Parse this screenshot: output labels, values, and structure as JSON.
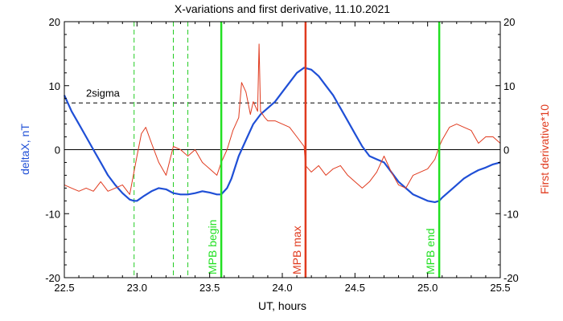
{
  "chart_data": {
    "type": "line",
    "title": "X-variations and first derivative, 11.10.2021",
    "xlabel": "UT, hours",
    "ylabel": "deltaX, nT",
    "ylabel_right": "First derivative*10",
    "xlim": [
      22.5,
      25.5
    ],
    "ylim": [
      -20,
      20
    ],
    "ylim_right": [
      -20,
      20
    ],
    "x_ticks": [
      "22.5",
      "23.0",
      "23.5",
      "24.0",
      "24.5",
      "25.0",
      "25.5"
    ],
    "x_tick_values": [
      22.5,
      23.0,
      23.5,
      24.0,
      24.5,
      25.0,
      25.5
    ],
    "y_ticks_left": [
      "20",
      "10",
      "0",
      "-10",
      "-20"
    ],
    "y_ticks_right": [
      "20",
      "10",
      "0",
      "-10",
      "-20"
    ],
    "y_tick_values": [
      20,
      10,
      0,
      -10,
      -20
    ],
    "zero_line": 0,
    "threshold": {
      "label": "2sigma",
      "value": 7.3
    },
    "colors": {
      "deltaX": "#1f4fd6",
      "derivative": "#e03a1e",
      "mpb_edge": "#22e022",
      "mpb_max": "#e03a1e",
      "dashed": "#22cc22"
    },
    "dashed_vlines": [
      22.98,
      23.25,
      23.35
    ],
    "vlines": [
      {
        "x": 23.58,
        "label": "MPB begin",
        "kind": "edge"
      },
      {
        "x": 24.16,
        "label": "MPB max",
        "kind": "max"
      },
      {
        "x": 25.08,
        "label": "MPB end",
        "kind": "edge"
      }
    ],
    "series": [
      {
        "id": "deltaX",
        "axis": "left",
        "x": [
          22.5,
          22.55,
          22.6,
          22.65,
          22.7,
          22.75,
          22.8,
          22.85,
          22.9,
          22.95,
          22.98,
          23.0,
          23.05,
          23.1,
          23.15,
          23.2,
          23.25,
          23.3,
          23.35,
          23.4,
          23.45,
          23.5,
          23.55,
          23.58,
          23.62,
          23.65,
          23.7,
          23.75,
          23.8,
          23.85,
          23.9,
          23.95,
          24.0,
          24.05,
          24.1,
          24.15,
          24.2,
          24.25,
          24.3,
          24.35,
          24.4,
          24.45,
          24.5,
          24.55,
          24.6,
          24.65,
          24.7,
          24.75,
          24.8,
          24.85,
          24.9,
          24.95,
          25.0,
          25.05,
          25.08,
          25.1,
          25.15,
          25.2,
          25.25,
          25.3,
          25.35,
          25.4,
          25.45,
          25.5
        ],
        "values": [
          8.5,
          6.0,
          4.0,
          2.0,
          0.0,
          -2.0,
          -4.0,
          -5.5,
          -6.8,
          -7.8,
          -8.0,
          -8.0,
          -7.2,
          -6.5,
          -6.0,
          -6.2,
          -6.8,
          -7.0,
          -7.0,
          -6.8,
          -6.5,
          -6.7,
          -7.0,
          -7.0,
          -6.0,
          -4.5,
          -1.0,
          1.5,
          4.0,
          5.5,
          6.5,
          7.5,
          9.0,
          10.5,
          12.0,
          12.8,
          12.5,
          11.5,
          10.0,
          8.5,
          6.5,
          4.5,
          2.5,
          0.5,
          -1.0,
          -1.5,
          -2.0,
          -3.5,
          -5.0,
          -6.0,
          -7.0,
          -7.5,
          -8.0,
          -8.2,
          -8.0,
          -7.5,
          -6.5,
          -5.5,
          -4.5,
          -3.8,
          -3.2,
          -2.8,
          -2.3,
          -2.0
        ]
      },
      {
        "id": "derivative",
        "axis": "right",
        "x": [
          22.5,
          22.55,
          22.6,
          22.65,
          22.7,
          22.75,
          22.8,
          22.85,
          22.9,
          22.95,
          23.0,
          23.03,
          23.06,
          23.1,
          23.15,
          23.2,
          23.25,
          23.3,
          23.35,
          23.4,
          23.45,
          23.5,
          23.55,
          23.58,
          23.62,
          23.66,
          23.7,
          23.72,
          23.75,
          23.78,
          23.8,
          23.83,
          23.84,
          23.85,
          23.88,
          23.9,
          23.95,
          24.0,
          24.05,
          24.1,
          24.15,
          24.16,
          24.2,
          24.25,
          24.3,
          24.35,
          24.4,
          24.45,
          24.5,
          24.55,
          24.6,
          24.65,
          24.7,
          24.75,
          24.8,
          24.85,
          24.9,
          24.95,
          25.0,
          25.05,
          25.08,
          25.1,
          25.15,
          25.2,
          25.25,
          25.3,
          25.35,
          25.4,
          25.45,
          25.5
        ],
        "values": [
          -5.5,
          -6.0,
          -6.5,
          -6.0,
          -6.5,
          -5.0,
          -6.5,
          -6.0,
          -5.5,
          -7.0,
          -1.0,
          2.5,
          3.5,
          1.0,
          -2.0,
          -4.0,
          0.5,
          0.0,
          -1.0,
          0.0,
          -2.0,
          -3.0,
          -4.0,
          -2.0,
          0.0,
          3.0,
          5.0,
          10.5,
          9.0,
          5.5,
          7.5,
          6.0,
          16.5,
          6.0,
          5.0,
          4.5,
          4.5,
          4.0,
          3.5,
          2.0,
          0.5,
          -2.5,
          -3.5,
          -2.5,
          -4.0,
          -3.0,
          -2.5,
          -4.0,
          -5.0,
          -6.0,
          -5.0,
          -3.5,
          -1.0,
          -3.5,
          -5.5,
          -6.0,
          -4.0,
          -3.5,
          -3.0,
          -1.5,
          0.5,
          1.5,
          3.5,
          4.0,
          3.5,
          3.0,
          1.0,
          2.0,
          2.0,
          1.0
        ]
      }
    ]
  }
}
